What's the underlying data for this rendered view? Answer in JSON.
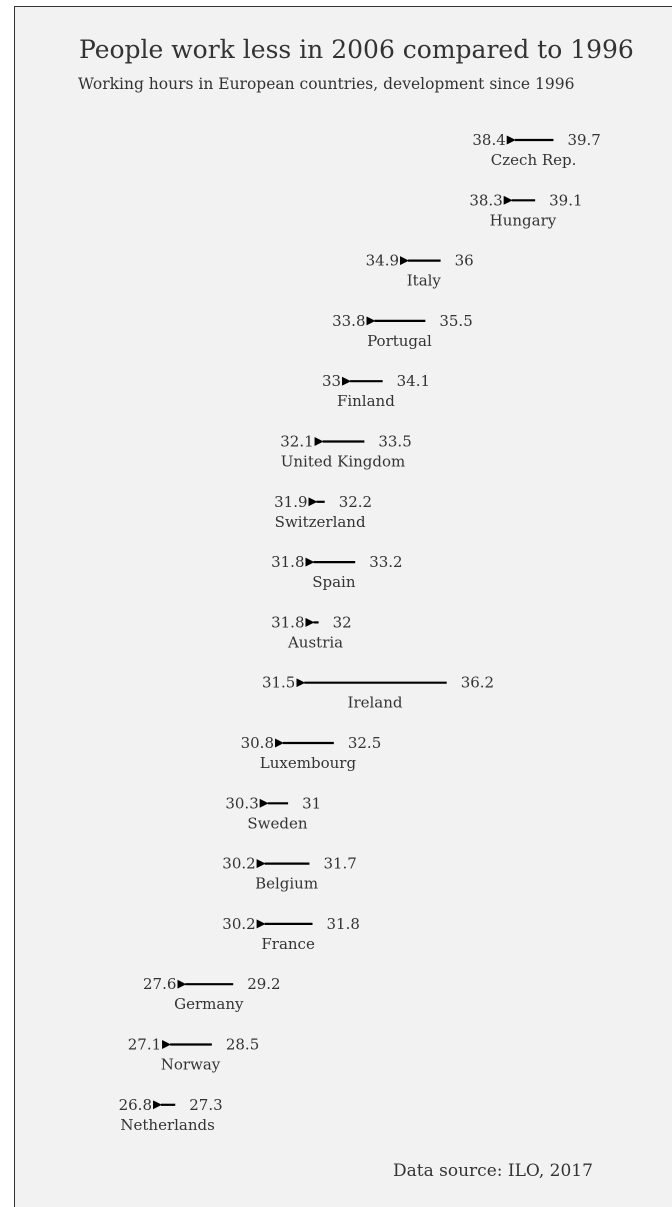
{
  "title": "People work less in 2006 compared to 1996",
  "subtitle": "Working hours in European countries, development since 1996",
  "source": "Data source: ILO, 2017",
  "colors": {
    "arrow": "#000000",
    "text": "#333333",
    "background": "#f2f2f2"
  },
  "chart_data": {
    "type": "arrow",
    "title": "People work less in 2006 compared to 1996",
    "subtitle": "Working hours in European countries, development since 1996",
    "xlabel": "",
    "ylabel": "",
    "grid": false,
    "series": [
      {
        "name": "1996",
        "role": "arrow-start"
      },
      {
        "name": "2006",
        "role": "arrow-end"
      }
    ],
    "points": [
      {
        "country": "Czech Rep.",
        "start": 39.7,
        "end": 38.4
      },
      {
        "country": "Hungary",
        "start": 39.1,
        "end": 38.3
      },
      {
        "country": "Italy",
        "start": 36,
        "end": 34.9
      },
      {
        "country": "Portugal",
        "start": 35.5,
        "end": 33.8
      },
      {
        "country": "Finland",
        "start": 34.1,
        "end": 33
      },
      {
        "country": "United Kingdom",
        "start": 33.5,
        "end": 32.1
      },
      {
        "country": "Switzerland",
        "start": 32.2,
        "end": 31.9
      },
      {
        "country": "Spain",
        "start": 33.2,
        "end": 31.8
      },
      {
        "country": "Austria",
        "start": 32,
        "end": 31.8
      },
      {
        "country": "Ireland",
        "start": 36.2,
        "end": 31.5
      },
      {
        "country": "Luxembourg",
        "start": 32.5,
        "end": 30.8
      },
      {
        "country": "Sweden",
        "start": 31,
        "end": 30.3
      },
      {
        "country": "Belgium",
        "start": 31.7,
        "end": 30.2
      },
      {
        "country": "France",
        "start": 31.8,
        "end": 30.2
      },
      {
        "country": "Germany",
        "start": 29.2,
        "end": 27.6
      },
      {
        "country": "Norway",
        "start": 28.5,
        "end": 27.1
      },
      {
        "country": "Netherlands",
        "start": 27.3,
        "end": 26.8
      }
    ]
  }
}
